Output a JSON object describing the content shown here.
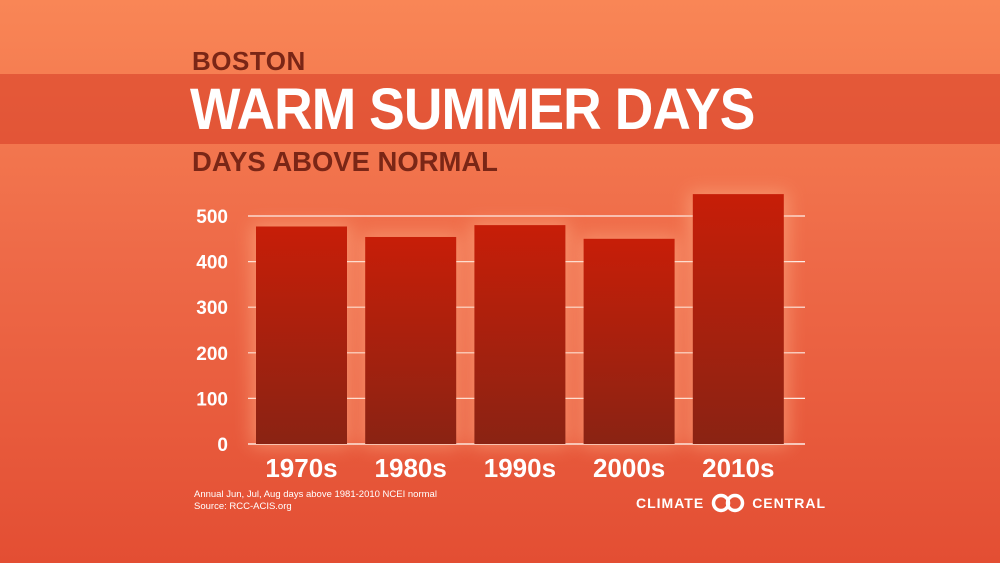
{
  "header": {
    "place": "BOSTON",
    "title": "WARM SUMMER DAYS",
    "subtitle": "DAYS ABOVE NORMAL"
  },
  "footnote": {
    "line1": "Annual Jun, Jul, Aug days above 1981-2010 NCEI normal",
    "line2": "Source: RCC-ACIS.org"
  },
  "logo": {
    "left_word": "CLIMATE",
    "right_word": "CENTRAL"
  },
  "colors": {
    "background_top": "#f98656",
    "background_bottom": "#e34e33",
    "bar_top": "#c71e08",
    "bar_bottom": "#8a2313",
    "heading_dark": "#7a2616",
    "text_light": "#ffffff"
  },
  "chart_data": {
    "type": "bar",
    "categories": [
      "1970s",
      "1980s",
      "1990s",
      "2000s",
      "2010s"
    ],
    "values": [
      477,
      454,
      480,
      450,
      548
    ],
    "title": "",
    "xlabel": "",
    "ylabel": "",
    "ylim": [
      0,
      500
    ],
    "yticks": [
      0,
      100,
      200,
      300,
      400,
      500
    ],
    "grid": true,
    "legend": "none"
  }
}
